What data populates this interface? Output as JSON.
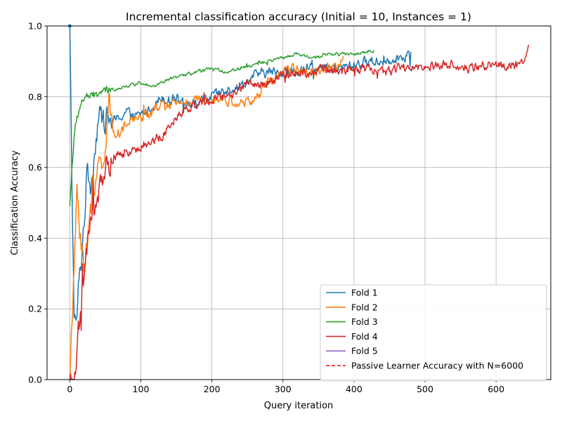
{
  "chart_data": {
    "type": "line",
    "title": "Incremental classification accuracy (Initial = 10, Instances = 1)",
    "xlabel": "Query iteration",
    "ylabel": "Classification Accuracy",
    "xlim": [
      -32,
      677
    ],
    "ylim": [
      0.0,
      1.0
    ],
    "grid": true,
    "legend_position": "lower-right",
    "x_ticks": [
      0,
      100,
      200,
      300,
      400,
      500,
      600
    ],
    "y_ticks": [
      0.0,
      0.2,
      0.4,
      0.6,
      0.8,
      1.0
    ],
    "x_tick_labels": [
      "0",
      "100",
      "200",
      "300",
      "400",
      "500",
      "600"
    ],
    "y_tick_labels": [
      "0.0",
      "0.2",
      "0.4",
      "0.6",
      "0.8",
      "1.0"
    ],
    "series": [
      {
        "name": "Fold 1",
        "color": "#1f77b4",
        "length": 480,
        "anchors": [
          [
            0,
            1.0
          ],
          [
            3,
            0.55
          ],
          [
            6,
            0.2
          ],
          [
            9,
            0.14
          ],
          [
            12,
            0.25
          ],
          [
            16,
            0.33
          ],
          [
            20,
            0.45
          ],
          [
            25,
            0.6
          ],
          [
            30,
            0.55
          ],
          [
            35,
            0.65
          ],
          [
            40,
            0.74
          ],
          [
            50,
            0.74
          ],
          [
            60,
            0.73
          ],
          [
            70,
            0.74
          ],
          [
            80,
            0.76
          ],
          [
            90,
            0.74
          ],
          [
            100,
            0.75
          ],
          [
            110,
            0.76
          ],
          [
            120,
            0.78
          ],
          [
            130,
            0.8
          ],
          [
            140,
            0.79
          ],
          [
            150,
            0.8
          ],
          [
            160,
            0.79
          ],
          [
            170,
            0.78
          ],
          [
            180,
            0.78
          ],
          [
            200,
            0.8
          ],
          [
            220,
            0.82
          ],
          [
            240,
            0.83
          ],
          [
            260,
            0.86
          ],
          [
            280,
            0.87
          ],
          [
            300,
            0.87
          ],
          [
            320,
            0.87
          ],
          [
            340,
            0.88
          ],
          [
            360,
            0.88
          ],
          [
            380,
            0.88
          ],
          [
            400,
            0.89
          ],
          [
            420,
            0.9
          ],
          [
            440,
            0.9
          ],
          [
            460,
            0.91
          ],
          [
            480,
            0.92
          ]
        ],
        "noise": 0.022
      },
      {
        "name": "Fold 2",
        "color": "#ff7f0e",
        "length": 385,
        "anchors": [
          [
            0,
            0.0
          ],
          [
            4,
            0.2
          ],
          [
            7,
            0.35
          ],
          [
            10,
            0.55
          ],
          [
            12,
            0.5
          ],
          [
            15,
            0.4
          ],
          [
            20,
            0.33
          ],
          [
            25,
            0.4
          ],
          [
            30,
            0.48
          ],
          [
            35,
            0.53
          ],
          [
            40,
            0.6
          ],
          [
            50,
            0.65
          ],
          [
            55,
            0.78
          ],
          [
            60,
            0.7
          ],
          [
            70,
            0.7
          ],
          [
            80,
            0.72
          ],
          [
            90,
            0.74
          ],
          [
            100,
            0.74
          ],
          [
            110,
            0.75
          ],
          [
            120,
            0.76
          ],
          [
            130,
            0.78
          ],
          [
            140,
            0.77
          ],
          [
            150,
            0.78
          ],
          [
            160,
            0.79
          ],
          [
            170,
            0.78
          ],
          [
            180,
            0.79
          ],
          [
            200,
            0.8
          ],
          [
            220,
            0.79
          ],
          [
            240,
            0.78
          ],
          [
            260,
            0.79
          ],
          [
            280,
            0.84
          ],
          [
            300,
            0.87
          ],
          [
            320,
            0.88
          ],
          [
            340,
            0.87
          ],
          [
            360,
            0.88
          ],
          [
            380,
            0.88
          ],
          [
            385,
            0.92
          ]
        ],
        "noise": 0.022
      },
      {
        "name": "Fold 3",
        "color": "#2ca02c",
        "length": 428,
        "anchors": [
          [
            0,
            0.49
          ],
          [
            3,
            0.6
          ],
          [
            6,
            0.68
          ],
          [
            10,
            0.74
          ],
          [
            14,
            0.77
          ],
          [
            18,
            0.79
          ],
          [
            22,
            0.8
          ],
          [
            30,
            0.8
          ],
          [
            40,
            0.81
          ],
          [
            60,
            0.82
          ],
          [
            80,
            0.83
          ],
          [
            100,
            0.84
          ],
          [
            120,
            0.83
          ],
          [
            130,
            0.84
          ],
          [
            140,
            0.85
          ],
          [
            160,
            0.86
          ],
          [
            180,
            0.87
          ],
          [
            200,
            0.88
          ],
          [
            220,
            0.87
          ],
          [
            240,
            0.88
          ],
          [
            260,
            0.89
          ],
          [
            280,
            0.9
          ],
          [
            300,
            0.91
          ],
          [
            320,
            0.92
          ],
          [
            340,
            0.91
          ],
          [
            360,
            0.92
          ],
          [
            380,
            0.92
          ],
          [
            400,
            0.92
          ],
          [
            428,
            0.93
          ]
        ],
        "noise": 0.007
      },
      {
        "name": "Fold 4",
        "color": "#d62728",
        "length": 646,
        "anchors": [
          [
            0,
            0.0
          ],
          [
            9,
            0.0
          ],
          [
            12,
            0.12
          ],
          [
            16,
            0.2
          ],
          [
            20,
            0.3
          ],
          [
            25,
            0.38
          ],
          [
            30,
            0.45
          ],
          [
            35,
            0.48
          ],
          [
            40,
            0.53
          ],
          [
            45,
            0.56
          ],
          [
            50,
            0.6
          ],
          [
            60,
            0.62
          ],
          [
            70,
            0.64
          ],
          [
            80,
            0.64
          ],
          [
            90,
            0.65
          ],
          [
            100,
            0.66
          ],
          [
            110,
            0.66
          ],
          [
            120,
            0.68
          ],
          [
            130,
            0.69
          ],
          [
            140,
            0.72
          ],
          [
            150,
            0.74
          ],
          [
            160,
            0.76
          ],
          [
            170,
            0.77
          ],
          [
            180,
            0.78
          ],
          [
            200,
            0.79
          ],
          [
            220,
            0.8
          ],
          [
            240,
            0.82
          ],
          [
            250,
            0.85
          ],
          [
            260,
            0.83
          ],
          [
            280,
            0.84
          ],
          [
            300,
            0.86
          ],
          [
            320,
            0.87
          ],
          [
            340,
            0.87
          ],
          [
            360,
            0.88
          ],
          [
            380,
            0.87
          ],
          [
            400,
            0.88
          ],
          [
            420,
            0.88
          ],
          [
            440,
            0.87
          ],
          [
            460,
            0.88
          ],
          [
            480,
            0.88
          ],
          [
            500,
            0.88
          ],
          [
            520,
            0.89
          ],
          [
            540,
            0.89
          ],
          [
            560,
            0.88
          ],
          [
            580,
            0.89
          ],
          [
            600,
            0.89
          ],
          [
            620,
            0.89
          ],
          [
            640,
            0.89
          ],
          [
            646,
            0.94
          ]
        ],
        "noise": 0.02
      },
      {
        "name": "Fold 5",
        "color": "#9467bd",
        "length": 0,
        "anchors": [],
        "noise": 0
      },
      {
        "name": "Passive Learner Accuracy with N=6000",
        "color": "#ff0000",
        "dashed": true,
        "length": 0,
        "anchors": [],
        "noise": 0
      }
    ]
  }
}
